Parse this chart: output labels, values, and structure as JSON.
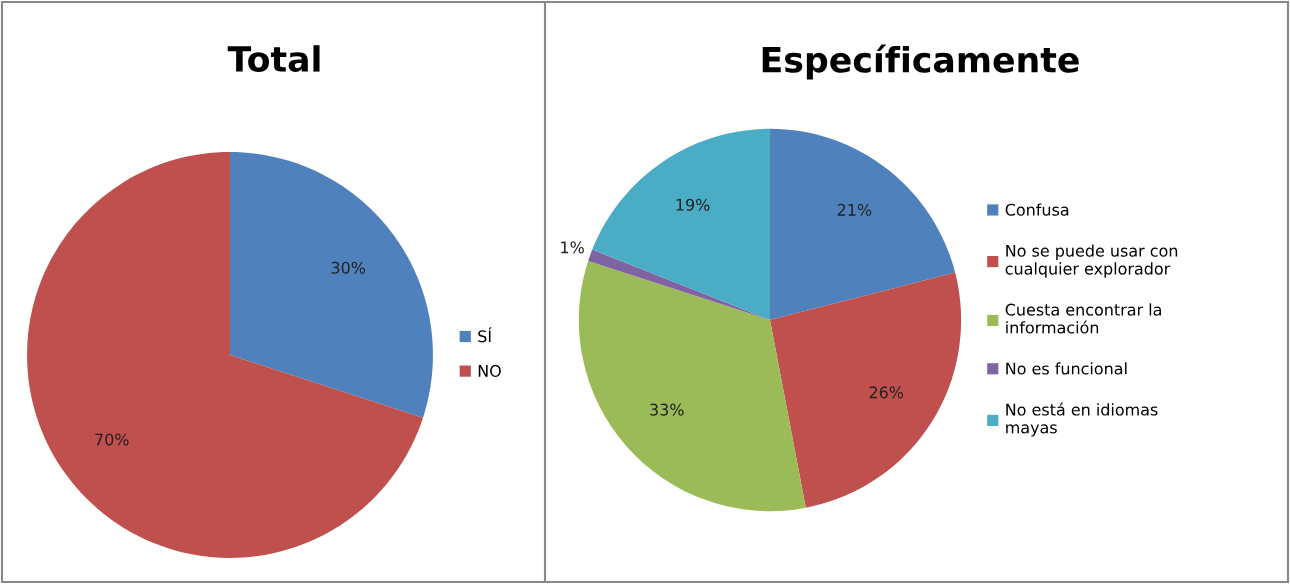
{
  "chart_data": [
    {
      "type": "pie",
      "title": "Total",
      "categories": [
        "SÍ",
        "NO"
      ],
      "values": [
        30,
        70
      ],
      "colors": [
        "#4f81bd",
        "#c0504d"
      ],
      "value_labels": [
        "30%",
        "70%"
      ],
      "legend": "right"
    },
    {
      "type": "pie",
      "title": "Específicamente",
      "categories": [
        "Confusa",
        "No se puede usar con\ncualquier explorador",
        "Cuesta encontrar la\ninformación",
        "No es funcional",
        "No está en idiomas\nmayas"
      ],
      "values": [
        21,
        26,
        33,
        1,
        19
      ],
      "colors": [
        "#4f81bd",
        "#c0504d",
        "#9bbb59",
        "#8064a2",
        "#4bacc6"
      ],
      "value_labels": [
        "21%",
        "26%",
        "33%",
        "1%",
        "19%"
      ],
      "legend": "right"
    }
  ]
}
